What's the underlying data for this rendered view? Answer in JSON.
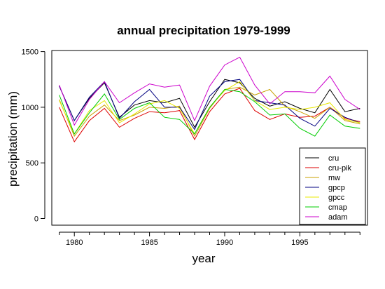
{
  "chart_data": {
    "type": "line",
    "title": "annual precipitation 1979-1999",
    "xlabel": "year",
    "ylabel": "precipitation (mm)",
    "xlim": [
      1978.5,
      1999.5
    ],
    "ylim": [
      -60,
      1510
    ],
    "x_ticks": [
      1980,
      1985,
      1990,
      1995
    ],
    "y_ticks": [
      0,
      500,
      1000,
      1500
    ],
    "legend_position": "bottom-right",
    "x": [
      1979,
      1980,
      1981,
      1982,
      1983,
      1984,
      1985,
      1986,
      1987,
      1988,
      1989,
      1990,
      1991,
      1992,
      1993,
      1994,
      1995,
      1996,
      1997,
      1998,
      1999
    ],
    "series": [
      {
        "name": "cru",
        "color": "#000000",
        "values": [
          1190,
          880,
          1080,
          1220,
          910,
          1020,
          1060,
          1040,
          1080,
          820,
          1050,
          1250,
          1220,
          1080,
          1010,
          1050,
          990,
          950,
          1160,
          960,
          990
        ]
      },
      {
        "name": "cru-pik",
        "color": "#dd0000",
        "values": [
          1000,
          690,
          880,
          990,
          820,
          900,
          960,
          950,
          970,
          710,
          960,
          1120,
          1170,
          970,
          890,
          940,
          910,
          920,
          1000,
          900,
          870
        ]
      },
      {
        "name": "mw",
        "color": "#c8a000",
        "values": [
          1070,
          740,
          920,
          1020,
          880,
          930,
          1000,
          990,
          1010,
          740,
          990,
          1160,
          1180,
          1110,
          1160,
          1010,
          960,
          900,
          1000,
          880,
          850
        ]
      },
      {
        "name": "gpcp",
        "color": "#000080",
        "values": [
          1190,
          880,
          1090,
          1230,
          900,
          1050,
          1160,
          1000,
          1000,
          800,
          1100,
          1230,
          1250,
          1060,
          1040,
          1020,
          900,
          830,
          990,
          910,
          860
        ]
      },
      {
        "name": "gpcc",
        "color": "#e8e800",
        "values": [
          1060,
          760,
          970,
          1060,
          860,
          940,
          1030,
          1060,
          990,
          760,
          1000,
          1150,
          1230,
          1060,
          980,
          1000,
          980,
          1000,
          1040,
          890,
          860
        ]
      },
      {
        "name": "cmap",
        "color": "#00cc00",
        "values": [
          1110,
          760,
          950,
          1120,
          890,
          990,
          1040,
          910,
          890,
          760,
          1000,
          1160,
          1140,
          1050,
          930,
          940,
          810,
          740,
          930,
          830,
          810
        ]
      },
      {
        "name": "adam",
        "color": "#cc00cc",
        "values": [
          1200,
          840,
          1070,
          1230,
          1040,
          1130,
          1210,
          1180,
          1200,
          880,
          1190,
          1380,
          1450,
          1200,
          1030,
          1140,
          1140,
          1130,
          1280,
          1070,
          980
        ]
      }
    ]
  }
}
